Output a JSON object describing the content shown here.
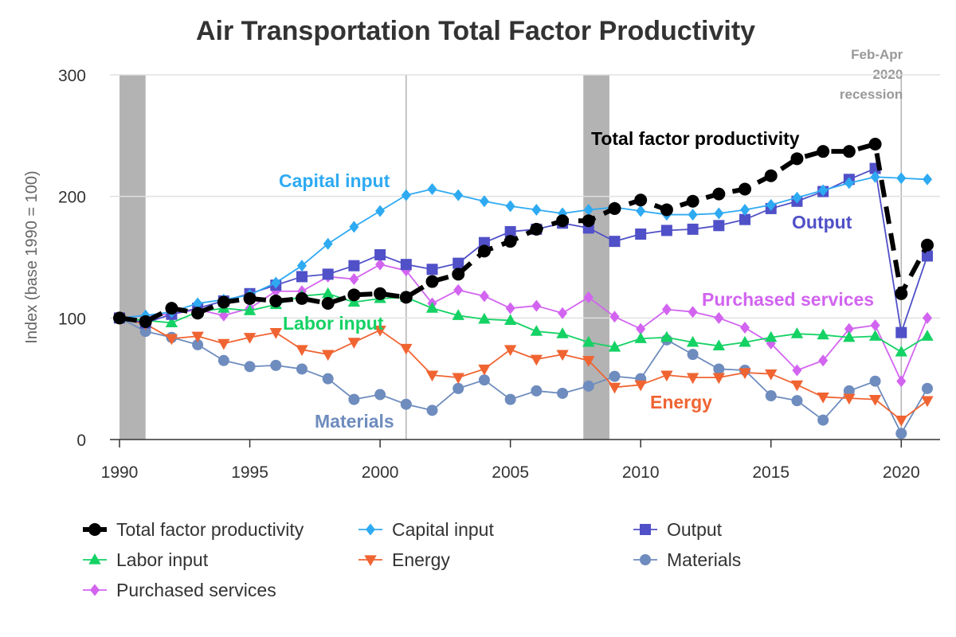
{
  "chart_data": {
    "type": "line",
    "title": "Air Transportation Total Factor Productivity",
    "xlabel": "",
    "ylabel": "Index (base 1990 = 100)",
    "xlim": [
      1990,
      2021
    ],
    "ylim": [
      0,
      300
    ],
    "x_ticks": [
      1990,
      1995,
      2000,
      2005,
      2010,
      2015,
      2020
    ],
    "y_ticks": [
      0,
      100,
      200,
      300
    ],
    "grid": "horizontal",
    "legend_position": "bottom",
    "x": [
      1990,
      1991,
      1992,
      1993,
      1994,
      1995,
      1996,
      1997,
      1998,
      1999,
      2000,
      2001,
      2002,
      2003,
      2004,
      2005,
      2006,
      2007,
      2008,
      2009,
      2010,
      2011,
      2012,
      2013,
      2014,
      2015,
      2016,
      2017,
      2018,
      2019,
      2020,
      2021
    ],
    "recessions": [
      {
        "start": 1990.0,
        "end": 1991.0,
        "label": ""
      },
      {
        "start": 2001.0,
        "end": 2001.0,
        "label": ""
      },
      {
        "start": 2007.8,
        "end": 2008.8,
        "label": ""
      },
      {
        "start": 2020.0,
        "end": 2020.0,
        "label": "Feb-Apr 2020 recession"
      }
    ],
    "series": [
      {
        "name": "Total factor productivity",
        "color": "#000000",
        "marker": "circle",
        "dashed": true,
        "values": [
          100,
          97,
          108,
          104,
          113,
          116,
          114,
          116,
          112,
          119,
          120,
          117,
          130,
          136,
          155,
          163,
          173,
          180,
          180,
          190,
          197,
          189,
          196,
          202,
          206,
          217,
          231,
          237,
          237,
          243,
          120,
          160
        ]
      },
      {
        "name": "Capital input",
        "color": "#2eaaf2",
        "marker": "diamond",
        "dashed": false,
        "values": [
          100,
          102,
          105,
          112,
          115,
          119,
          129,
          143,
          161,
          175,
          188,
          201,
          206,
          201,
          196,
          192,
          189,
          186,
          189,
          191,
          188,
          185,
          185,
          186,
          189,
          193,
          199,
          205,
          211,
          216,
          215,
          214
        ]
      },
      {
        "name": "Output",
        "color": "#5050c8",
        "marker": "square",
        "dashed": false,
        "values": [
          100,
          96,
          103,
          108,
          114,
          120,
          127,
          134,
          136,
          143,
          152,
          144,
          140,
          145,
          162,
          171,
          173,
          178,
          174,
          163,
          169,
          172,
          173,
          176,
          181,
          190,
          196,
          204,
          214,
          223,
          88,
          151
        ]
      },
      {
        "name": "Labor input",
        "color": "#14d264",
        "marker": "triangle",
        "dashed": false,
        "values": [
          100,
          98,
          96,
          105,
          108,
          106,
          111,
          118,
          120,
          113,
          116,
          117,
          108,
          102,
          99,
          98,
          89,
          87,
          80,
          76,
          83,
          84,
          80,
          77,
          80,
          84,
          87,
          86,
          84,
          85,
          72,
          85
        ]
      },
      {
        "name": "Energy",
        "color": "#f06432",
        "marker": "triangle-down",
        "dashed": false,
        "values": [
          100,
          95,
          83,
          85,
          79,
          84,
          88,
          74,
          70,
          80,
          90,
          75,
          53,
          51,
          58,
          74,
          66,
          70,
          65,
          43,
          45,
          53,
          51,
          51,
          55,
          54,
          45,
          35,
          34,
          33,
          16,
          32
        ]
      },
      {
        "name": "Materials",
        "color": "#6e8cbe",
        "marker": "circle",
        "dashed": false,
        "values": [
          100,
          89,
          84,
          78,
          65,
          60,
          61,
          58,
          50,
          33,
          37,
          29,
          24,
          42,
          49,
          33,
          40,
          38,
          44,
          52,
          50,
          82,
          70,
          58,
          57,
          36,
          32,
          16,
          40,
          48,
          5,
          42
        ]
      },
      {
        "name": "Purchased services",
        "color": "#d264f0",
        "marker": "diamond",
        "dashed": false,
        "values": [
          100,
          102,
          103,
          107,
          102,
          108,
          122,
          122,
          134,
          132,
          144,
          139,
          112,
          123,
          118,
          108,
          110,
          104,
          117,
          101,
          91,
          107,
          105,
          100,
          92,
          79,
          57,
          65,
          91,
          94,
          48,
          100
        ]
      }
    ],
    "annotations": [
      {
        "series": "Total factor productivity",
        "text": "Total factor productivity",
        "color": "#000000"
      },
      {
        "series": "Capital input",
        "text": "Capital input",
        "color": "#2eaaf2"
      },
      {
        "series": "Output",
        "text": "Output",
        "color": "#5050c8"
      },
      {
        "series": "Purchased services",
        "text": "Purchased services",
        "color": "#d264f0"
      },
      {
        "series": "Labor input",
        "text": "Labor input",
        "color": "#14d264"
      },
      {
        "series": "Energy",
        "text": "Energy",
        "color": "#f06432"
      },
      {
        "series": "Materials",
        "text": "Materials",
        "color": "#6e8cbe"
      }
    ]
  }
}
